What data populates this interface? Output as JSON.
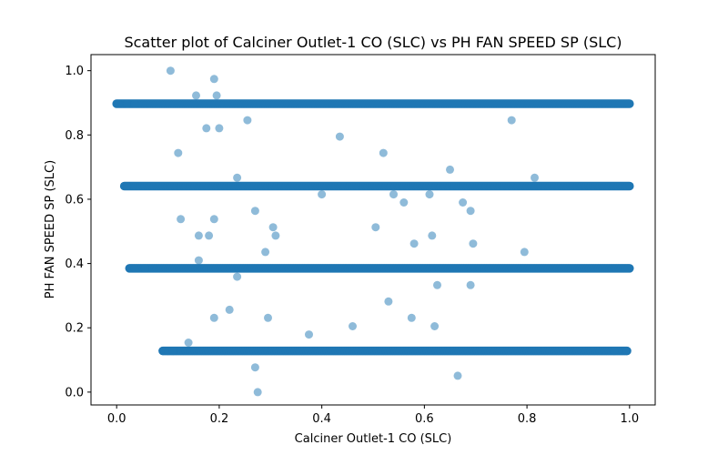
{
  "chart_data": {
    "type": "scatter",
    "title": "Scatter plot of Calciner Outlet-1 CO (SLC) vs PH FAN SPEED SP (SLC)",
    "xlabel": "Calciner Outlet-1 CO (SLC)",
    "ylabel": "PH FAN SPEED SP (SLC)",
    "xlim": [
      -0.05,
      1.05
    ],
    "ylim": [
      -0.04,
      1.05
    ],
    "xticks": [
      "0.0",
      "0.2",
      "0.4",
      "0.6",
      "0.8",
      "1.0"
    ],
    "yticks": [
      "0.0",
      "0.2",
      "0.4",
      "0.6",
      "0.8",
      "1.0"
    ],
    "grid": false,
    "legend": "none",
    "marker_color": "#1f77b4",
    "marker_alpha": 0.5,
    "bands": [
      {
        "y": 0.897,
        "x_start": 0.0,
        "x_end": 1.0
      },
      {
        "y": 0.641,
        "x_start": 0.015,
        "x_end": 1.0
      },
      {
        "y": 0.385,
        "x_start": 0.025,
        "x_end": 1.0
      },
      {
        "y": 0.128,
        "x_start": 0.09,
        "x_end": 0.995
      }
    ],
    "points": [
      {
        "x": 0.0,
        "y": 0.897
      },
      {
        "x": 0.003,
        "y": 0.897
      },
      {
        "x": 0.02,
        "y": 0.897
      },
      {
        "x": 0.035,
        "y": 0.897
      },
      {
        "x": 0.105,
        "y": 1.0
      },
      {
        "x": 0.19,
        "y": 0.974
      },
      {
        "x": 0.155,
        "y": 0.923
      },
      {
        "x": 0.195,
        "y": 0.923
      },
      {
        "x": 0.175,
        "y": 0.821
      },
      {
        "x": 0.2,
        "y": 0.821
      },
      {
        "x": 0.255,
        "y": 0.846
      },
      {
        "x": 0.77,
        "y": 0.846
      },
      {
        "x": 0.435,
        "y": 0.795
      },
      {
        "x": 0.12,
        "y": 0.744
      },
      {
        "x": 0.52,
        "y": 0.744
      },
      {
        "x": 0.65,
        "y": 0.692
      },
      {
        "x": 0.235,
        "y": 0.667
      },
      {
        "x": 0.815,
        "y": 0.667
      },
      {
        "x": 0.02,
        "y": 0.641
      },
      {
        "x": 0.4,
        "y": 0.615
      },
      {
        "x": 0.54,
        "y": 0.615
      },
      {
        "x": 0.61,
        "y": 0.615
      },
      {
        "x": 0.56,
        "y": 0.59
      },
      {
        "x": 0.675,
        "y": 0.59
      },
      {
        "x": 0.27,
        "y": 0.564
      },
      {
        "x": 0.69,
        "y": 0.564
      },
      {
        "x": 0.125,
        "y": 0.538
      },
      {
        "x": 0.19,
        "y": 0.538
      },
      {
        "x": 0.305,
        "y": 0.513
      },
      {
        "x": 0.505,
        "y": 0.513
      },
      {
        "x": 0.16,
        "y": 0.487
      },
      {
        "x": 0.18,
        "y": 0.487
      },
      {
        "x": 0.31,
        "y": 0.487
      },
      {
        "x": 0.615,
        "y": 0.487
      },
      {
        "x": 0.58,
        "y": 0.462
      },
      {
        "x": 0.695,
        "y": 0.462
      },
      {
        "x": 0.29,
        "y": 0.436
      },
      {
        "x": 0.795,
        "y": 0.436
      },
      {
        "x": 0.16,
        "y": 0.41
      },
      {
        "x": 0.028,
        "y": 0.385
      },
      {
        "x": 0.035,
        "y": 0.385
      },
      {
        "x": 0.055,
        "y": 0.385
      },
      {
        "x": 0.235,
        "y": 0.359
      },
      {
        "x": 0.625,
        "y": 0.333
      },
      {
        "x": 0.69,
        "y": 0.333
      },
      {
        "x": 0.53,
        "y": 0.282
      },
      {
        "x": 0.22,
        "y": 0.256
      },
      {
        "x": 0.19,
        "y": 0.231
      },
      {
        "x": 0.295,
        "y": 0.231
      },
      {
        "x": 0.575,
        "y": 0.231
      },
      {
        "x": 0.46,
        "y": 0.205
      },
      {
        "x": 0.62,
        "y": 0.205
      },
      {
        "x": 0.375,
        "y": 0.179
      },
      {
        "x": 0.14,
        "y": 0.154
      },
      {
        "x": 0.09,
        "y": 0.128
      },
      {
        "x": 0.1,
        "y": 0.128
      },
      {
        "x": 0.11,
        "y": 0.128
      },
      {
        "x": 0.97,
        "y": 0.128
      },
      {
        "x": 0.995,
        "y": 0.128
      },
      {
        "x": 0.27,
        "y": 0.077
      },
      {
        "x": 0.665,
        "y": 0.051
      },
      {
        "x": 0.275,
        "y": 0.0
      }
    ]
  }
}
